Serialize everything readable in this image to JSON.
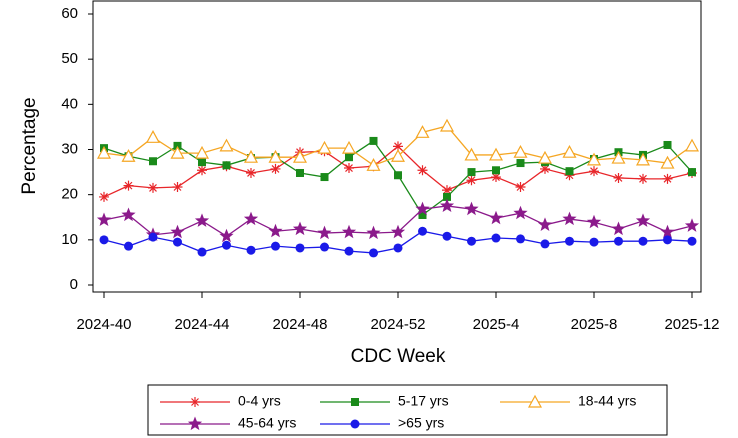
{
  "chart_data": {
    "type": "line",
    "xlabel": "CDC Week",
    "ylabel": "Percentage",
    "categories": [
      "2024-40",
      null,
      null,
      null,
      "2024-44",
      null,
      null,
      null,
      "2024-48",
      null,
      null,
      null,
      "2024-52",
      null,
      null,
      null,
      "2025-4",
      null,
      null,
      null,
      "2025-8",
      null,
      null,
      null,
      "2025-12"
    ],
    "ylim": [
      0,
      60
    ],
    "yticks": [
      0,
      10,
      20,
      30,
      40,
      50,
      60
    ],
    "series": [
      {
        "name": "0-4 yrs",
        "color": "#e8262a",
        "marker": "asterisk",
        "values": [
          19.5,
          22,
          21.5,
          21.7,
          25.4,
          26.3,
          24.8,
          25.7,
          29.4,
          29.6,
          25.9,
          26.3,
          30.7,
          25.4,
          21,
          23.2,
          23.9,
          21.7,
          25.7,
          24.3,
          25.2,
          23.7,
          23.5,
          23.5,
          24.8
        ]
      },
      {
        "name": "5-17 yrs",
        "color": "#1a8a1a",
        "marker": "square",
        "values": [
          30.3,
          28.5,
          27.4,
          30.8,
          27.2,
          26.5,
          28.1,
          28.3,
          24.8,
          23.9,
          28.3,
          31.9,
          24.3,
          15.5,
          19.5,
          25,
          25.4,
          27,
          27.2,
          25.2,
          27.9,
          29.4,
          28.8,
          31,
          25
        ]
      },
      {
        "name": "18-44 yrs",
        "color": "#f5a623",
        "marker": "triangle",
        "values": [
          29.2,
          28.5,
          32.7,
          29.2,
          29.2,
          30.8,
          28.3,
          28.3,
          28.3,
          30.3,
          30.3,
          26.5,
          28.5,
          33.8,
          35.2,
          28.8,
          28.8,
          29.4,
          28.1,
          29.4,
          27.7,
          28.1,
          27.7,
          27,
          30.8
        ]
      },
      {
        "name": "45-64 yrs",
        "color": "#8b1a8b",
        "marker": "star",
        "values": [
          14.4,
          15.5,
          11.1,
          11.7,
          14.2,
          10.8,
          14.6,
          11.9,
          12.4,
          11.5,
          11.7,
          11.5,
          11.7,
          16.8,
          17.5,
          16.8,
          14.8,
          15.9,
          13.3,
          14.6,
          13.9,
          12.4,
          14.2,
          11.7,
          13.1
        ]
      },
      {
        "name": ">65 yrs",
        "color": "#1a1ae8",
        "marker": "circle",
        "values": [
          10,
          8.6,
          10.6,
          9.5,
          7.3,
          8.8,
          7.7,
          8.6,
          8.2,
          8.4,
          7.5,
          7.1,
          8.2,
          11.9,
          10.8,
          9.7,
          10.4,
          10.2,
          9.1,
          9.7,
          9.5,
          9.7,
          9.7,
          10,
          9.7
        ]
      }
    ]
  }
}
